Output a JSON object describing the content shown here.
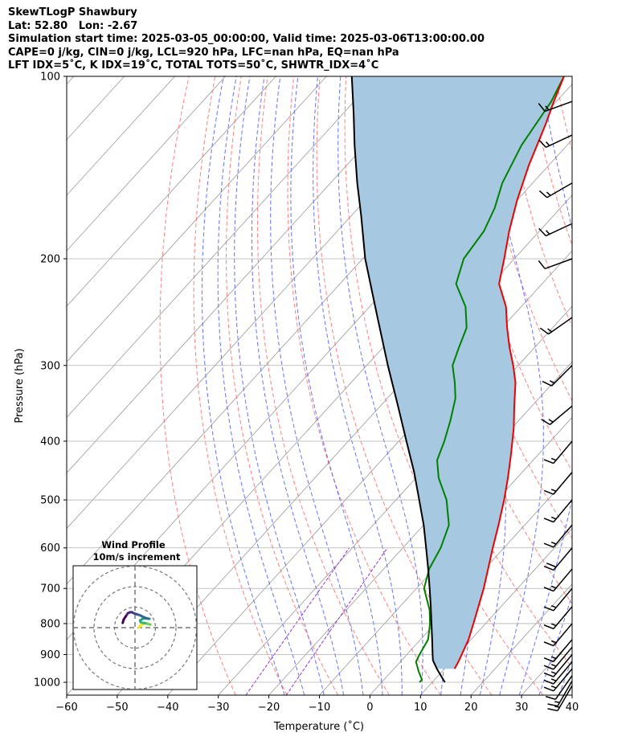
{
  "header": {
    "line1": "SkewTLogP Shawbury",
    "line2": "Lat: 52.80   Lon: -2.67",
    "line3": "Simulation start time: 2025-03-05_00:00:00, Valid time: 2025-03-06T13:00:00.00",
    "line4": "CAPE=0 j/kg, CIN=0 j/kg, LCL=920 hPa, LFC=nan hPa, EQ=nan hPa",
    "line5": "LFT IDX=5˚C, K IDX=19˚C, TOTAL TOTS=50˚C, SHWTR_IDX=4˚C"
  },
  "chart_data": {
    "type": "line",
    "xlabel": "Temperature (˚C)",
    "ylabel": "Pressure (hPa)",
    "xlim": [
      -60,
      40
    ],
    "ylim": [
      1050,
      100
    ],
    "y_scale": "log",
    "skew": true,
    "x_ticks": [
      "−60",
      "−50",
      "−40",
      "−30",
      "−20",
      "−10",
      "0",
      "10",
      "20",
      "30",
      "40"
    ],
    "y_ticks": [
      "100",
      "200",
      "300",
      "400",
      "500",
      "600",
      "700",
      "800",
      "900",
      "1000"
    ],
    "grid": true,
    "colors": {
      "temperature": "#ee0000",
      "dewpoint": "#008000",
      "parcel": "#000000",
      "shade": "#a6c8e0",
      "dry_adiabat": "#ff6060",
      "moist_adiabat": "#4050ff",
      "mixing_ratio": "#9933cc",
      "isotherm": "#999999"
    },
    "series": [
      {
        "key": "temperature",
        "pressure": [
          950,
          925,
          850,
          800,
          700,
          600,
          550,
          500,
          460,
          420,
          380,
          350,
          320,
          300,
          280,
          260,
          240,
          220,
          200,
          180,
          160,
          140,
          120,
          110,
          100
        ],
        "values": [
          12,
          11.5,
          9.5,
          7.6,
          3.3,
          -2.2,
          -5.2,
          -8.6,
          -11.8,
          -15.5,
          -19.7,
          -23.5,
          -27.5,
          -31,
          -35,
          -39,
          -43,
          -48.5,
          -52,
          -56,
          -60,
          -64,
          -68,
          -70.5,
          -73
        ]
      },
      {
        "key": "dewpoint",
        "pressure": [
          1000,
          990,
          960,
          925,
          900,
          850,
          800,
          760,
          700,
          650,
          600,
          550,
          500,
          460,
          430,
          400,
          370,
          340,
          320,
          300,
          280,
          260,
          240,
          220,
          200,
          180,
          165,
          150,
          130,
          110,
          100
        ],
        "values": [
          7.5,
          7.5,
          5.4,
          3.1,
          2.5,
          1.5,
          -1,
          -3.5,
          -8.5,
          -11,
          -12.5,
          -15,
          -20,
          -25.5,
          -29,
          -31,
          -33.5,
          -36.5,
          -39.5,
          -43,
          -45,
          -47,
          -51,
          -57,
          -60,
          -61,
          -63,
          -66,
          -69,
          -71,
          -73
        ]
      },
      {
        "key": "parcel",
        "pressure": [
          1000,
          950,
          920,
          900,
          850,
          800,
          750,
          700,
          650,
          600,
          550,
          500,
          450,
          400,
          350,
          300,
          250,
          200,
          170,
          150,
          130,
          115,
          100
        ],
        "values": [
          12.5,
          8.5,
          6.2,
          5.1,
          2.3,
          -0.7,
          -3.9,
          -7.4,
          -11.2,
          -15.4,
          -20,
          -25.4,
          -31.4,
          -38.5,
          -46.5,
          -55.8,
          -66.5,
          -79.5,
          -88,
          -94.7,
          -102,
          -108,
          -115
        ]
      }
    ],
    "wind_barbs": [
      {
        "p": 1013,
        "speed_kt": 15,
        "dir": 210
      },
      {
        "p": 995,
        "speed_kt": 15,
        "dir": 210
      },
      {
        "p": 975,
        "speed_kt": 10,
        "dir": 215
      },
      {
        "p": 950,
        "speed_kt": 15,
        "dir": 220
      },
      {
        "p": 925,
        "speed_kt": 15,
        "dir": 220
      },
      {
        "p": 900,
        "speed_kt": 15,
        "dir": 220
      },
      {
        "p": 875,
        "speed_kt": 15,
        "dir": 220
      },
      {
        "p": 850,
        "speed_kt": 15,
        "dir": 220
      },
      {
        "p": 800,
        "speed_kt": 15,
        "dir": 220
      },
      {
        "p": 750,
        "speed_kt": 15,
        "dir": 220
      },
      {
        "p": 700,
        "speed_kt": 15,
        "dir": 220
      },
      {
        "p": 650,
        "speed_kt": 15,
        "dir": 220
      },
      {
        "p": 600,
        "speed_kt": 20,
        "dir": 220
      },
      {
        "p": 550,
        "speed_kt": 15,
        "dir": 220
      },
      {
        "p": 500,
        "speed_kt": 15,
        "dir": 220
      },
      {
        "p": 450,
        "speed_kt": 15,
        "dir": 220
      },
      {
        "p": 400,
        "speed_kt": 15,
        "dir": 220
      },
      {
        "p": 350,
        "speed_kt": 15,
        "dir": 230
      },
      {
        "p": 300,
        "speed_kt": 15,
        "dir": 225
      },
      {
        "p": 250,
        "speed_kt": 15,
        "dir": 235
      },
      {
        "p": 200,
        "speed_kt": 10,
        "dir": 250
      },
      {
        "p": 175,
        "speed_kt": 15,
        "dir": 245
      },
      {
        "p": 150,
        "speed_kt": 15,
        "dir": 240
      },
      {
        "p": 125,
        "speed_kt": 15,
        "dir": 245
      },
      {
        "p": 110,
        "speed_kt": 15,
        "dir": 250
      }
    ],
    "hodograph": {
      "title": "Wind Profile",
      "subtitle": "10m/s increment",
      "rings": [
        10,
        20,
        30
      ],
      "colormap": "viridis",
      "u": [
        2,
        2.5,
        3.5,
        4.5,
        6,
        7,
        7.5,
        6.5,
        5,
        3.5,
        2.8,
        2.5,
        4,
        5.5,
        7,
        6.5,
        6,
        4.5,
        2.5,
        1,
        -0.5,
        -1.5,
        -2.5,
        -3.5,
        -4.5,
        -5.5,
        -6
      ],
      "v": [
        0,
        1,
        1.5,
        2,
        2,
        1.5,
        1.5,
        1.8,
        2.2,
        2.4,
        2.6,
        3.5,
        4.5,
        4.5,
        4.3,
        4.3,
        4.5,
        5,
        6,
        6.5,
        7,
        7.5,
        7.5,
        7,
        5.5,
        4,
        2.3
      ]
    }
  }
}
